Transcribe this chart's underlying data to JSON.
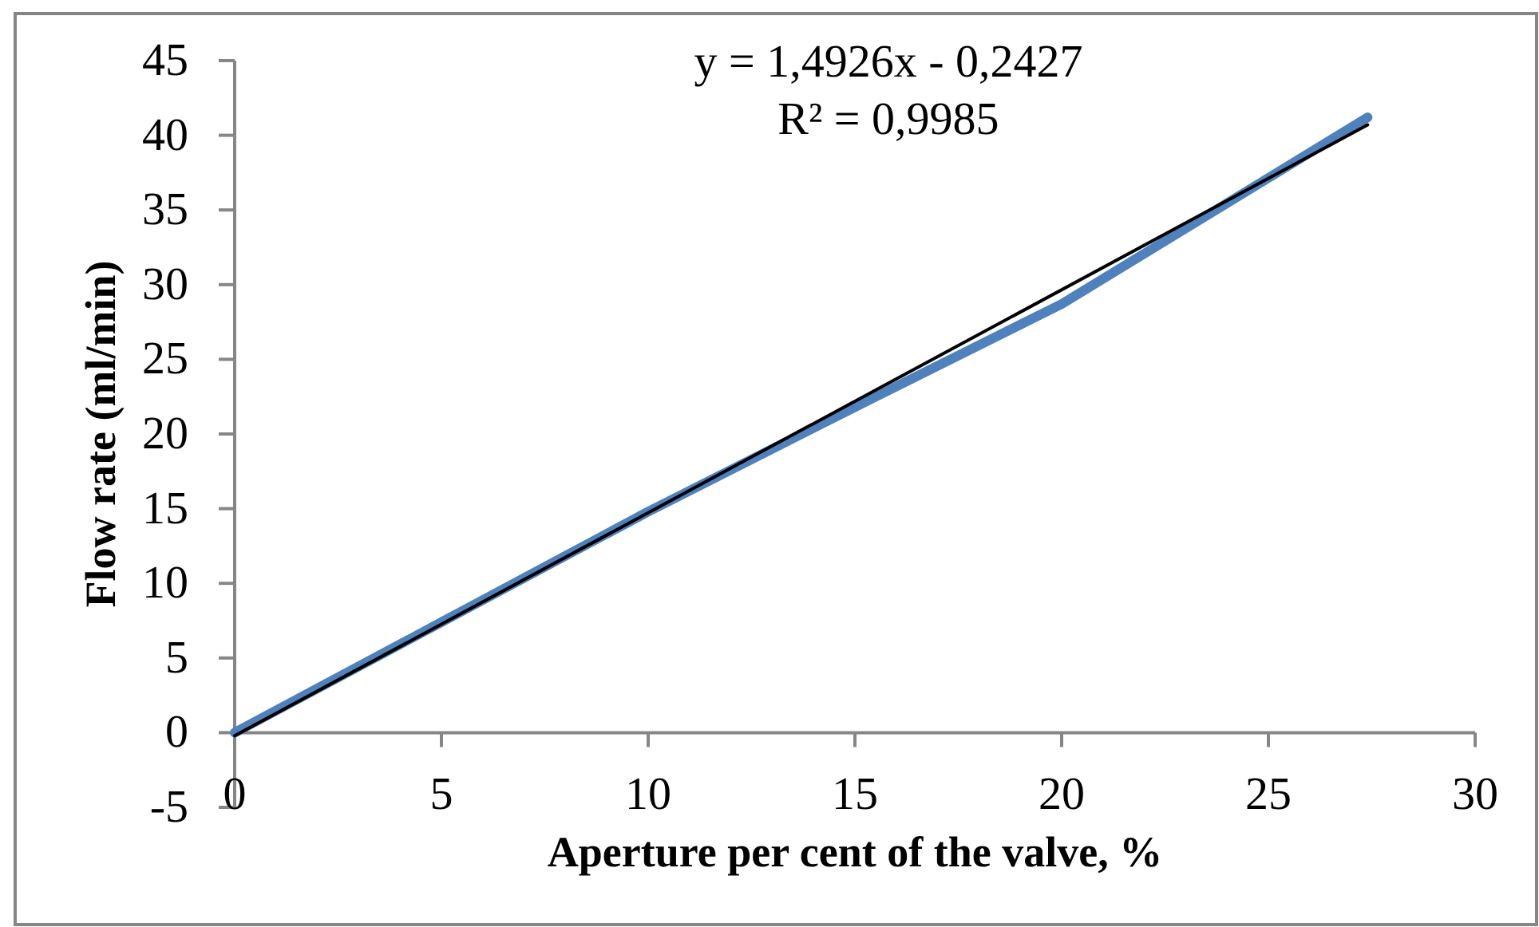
{
  "chart_data": {
    "type": "line",
    "xlabel": "Aperture per cent of the valve, %",
    "ylabel": "Flow rate (ml/min)",
    "annotations": [
      "y = 1,4926x - 0,2427",
      "R² = 0,9985"
    ],
    "xlim": [
      0,
      30
    ],
    "xticks": [
      0,
      5,
      10,
      15,
      20,
      25,
      30
    ],
    "ylim": [
      -5,
      45
    ],
    "yticks": [
      -5,
      0,
      5,
      10,
      15,
      20,
      25,
      30,
      35,
      40,
      45
    ],
    "series": [
      {
        "color": "#4f81bd",
        "x": [
          0,
          5,
          10,
          15,
          20,
          27.4
        ],
        "values": [
          0,
          7.4,
          14.8,
          21.8,
          28.7,
          41.2
        ]
      },
      {
        "type": "line",
        "color": "#000000",
        "x": [
          0,
          27.4
        ],
        "values": [
          -0.2,
          40.7
        ]
      }
    ]
  }
}
